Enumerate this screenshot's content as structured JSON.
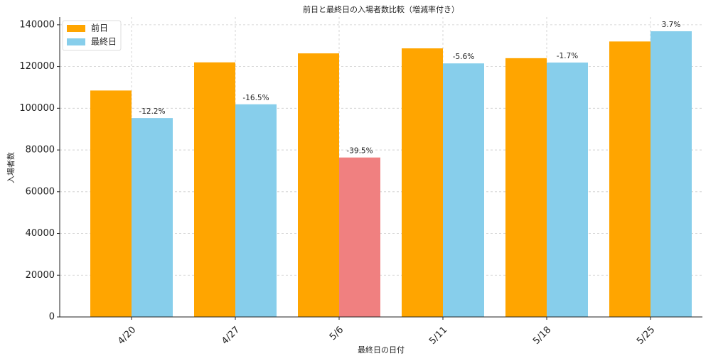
{
  "chart_data": {
    "type": "bar",
    "title": "前日と最終日の入場者数比較（増減率付き）",
    "x_label": "最終日の日付",
    "y_label": "入場者数",
    "categories": [
      "4/20",
      "4/27",
      "5/6",
      "5/11",
      "5/18",
      "5/25"
    ],
    "series": [
      {
        "name": "前日",
        "color": "#ffa500",
        "values": [
          108500,
          122000,
          126300,
          128700,
          124000,
          132000
        ]
      },
      {
        "name": "最終日",
        "color": "#87ceeb",
        "colors": [
          "#87ceeb",
          "#87ceeb",
          "#f08080",
          "#87ceeb",
          "#87ceeb",
          "#87ceeb"
        ],
        "values": [
          95300,
          101900,
          76400,
          121500,
          121900,
          136900
        ]
      }
    ],
    "annotations": [
      "-12.2%",
      "-16.5%",
      "-39.5%",
      "-5.6%",
      "-1.7%",
      "3.7%"
    ],
    "ylim": [
      0,
      143700
    ],
    "yticks": [
      0,
      20000,
      40000,
      60000,
      80000,
      100000,
      120000,
      140000
    ],
    "grid": true,
    "legend": "upper-left"
  }
}
